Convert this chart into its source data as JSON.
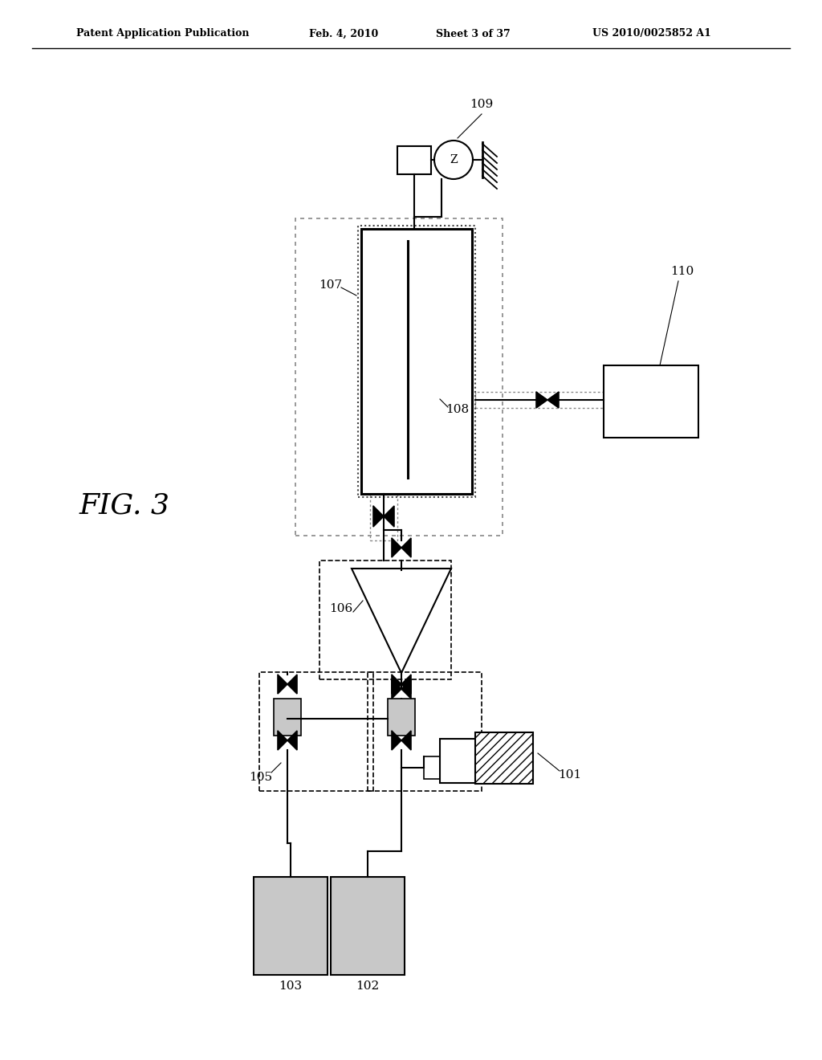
{
  "bg_color": "#ffffff",
  "header": {
    "left": "Patent Application Publication",
    "center_date": "Feb. 4, 2010",
    "center_sheet": "Sheet 3 of 37",
    "right": "US 2010/0025852 A1"
  },
  "fig_label": "FIG. 3",
  "gray_fill": "#c8c8c8",
  "line_color": "#000000"
}
